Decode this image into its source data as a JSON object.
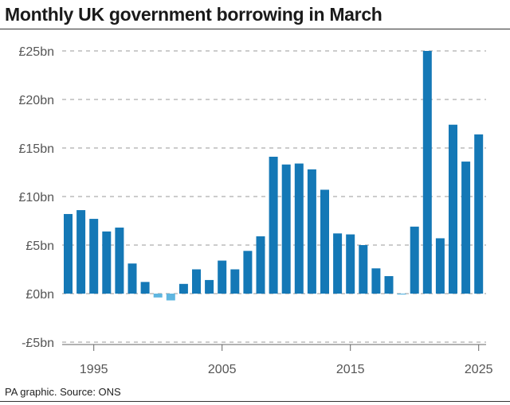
{
  "title": "Monthly UK government borrowing in March",
  "source": "PA graphic. Source: ONS",
  "colors": {
    "positive": "#1478b6",
    "negative": "#5fb6e0",
    "grid": "#9a9a9a",
    "text": "#555555"
  },
  "chart_data": {
    "type": "bar",
    "title": "Monthly UK government borrowing in March",
    "xlabel": "",
    "ylabel": "",
    "ylim": [
      -5,
      25
    ],
    "y_ticks": [
      {
        "value": 25,
        "label": "£25bn"
      },
      {
        "value": 20,
        "label": "£20bn"
      },
      {
        "value": 15,
        "label": "£15bn"
      },
      {
        "value": 10,
        "label": "£10bn"
      },
      {
        "value": 5,
        "label": "£5bn"
      },
      {
        "value": 0,
        "label": "£0bn"
      },
      {
        "value": -5,
        "label": "-£5bn"
      }
    ],
    "x_ticks": [
      {
        "value": 1995,
        "label": "1995"
      },
      {
        "value": 2005,
        "label": "2005"
      },
      {
        "value": 2015,
        "label": "2015"
      },
      {
        "value": 2025,
        "label": "2025"
      }
    ],
    "grid": true,
    "categories": [
      1993,
      1994,
      1995,
      1996,
      1997,
      1998,
      1999,
      2000,
      2001,
      2002,
      2003,
      2004,
      2005,
      2006,
      2007,
      2008,
      2009,
      2010,
      2011,
      2012,
      2013,
      2014,
      2015,
      2016,
      2017,
      2018,
      2019,
      2020,
      2021,
      2022,
      2023,
      2024,
      2025
    ],
    "values": [
      8.2,
      8.6,
      7.7,
      6.4,
      6.8,
      3.1,
      1.2,
      -0.4,
      -0.7,
      1.0,
      2.5,
      1.4,
      3.4,
      2.5,
      4.4,
      5.9,
      14.1,
      13.3,
      13.4,
      12.8,
      10.7,
      6.2,
      6.1,
      5.0,
      2.6,
      1.8,
      -0.1,
      6.9,
      25.0,
      5.7,
      17.4,
      13.6,
      16.4
    ]
  }
}
